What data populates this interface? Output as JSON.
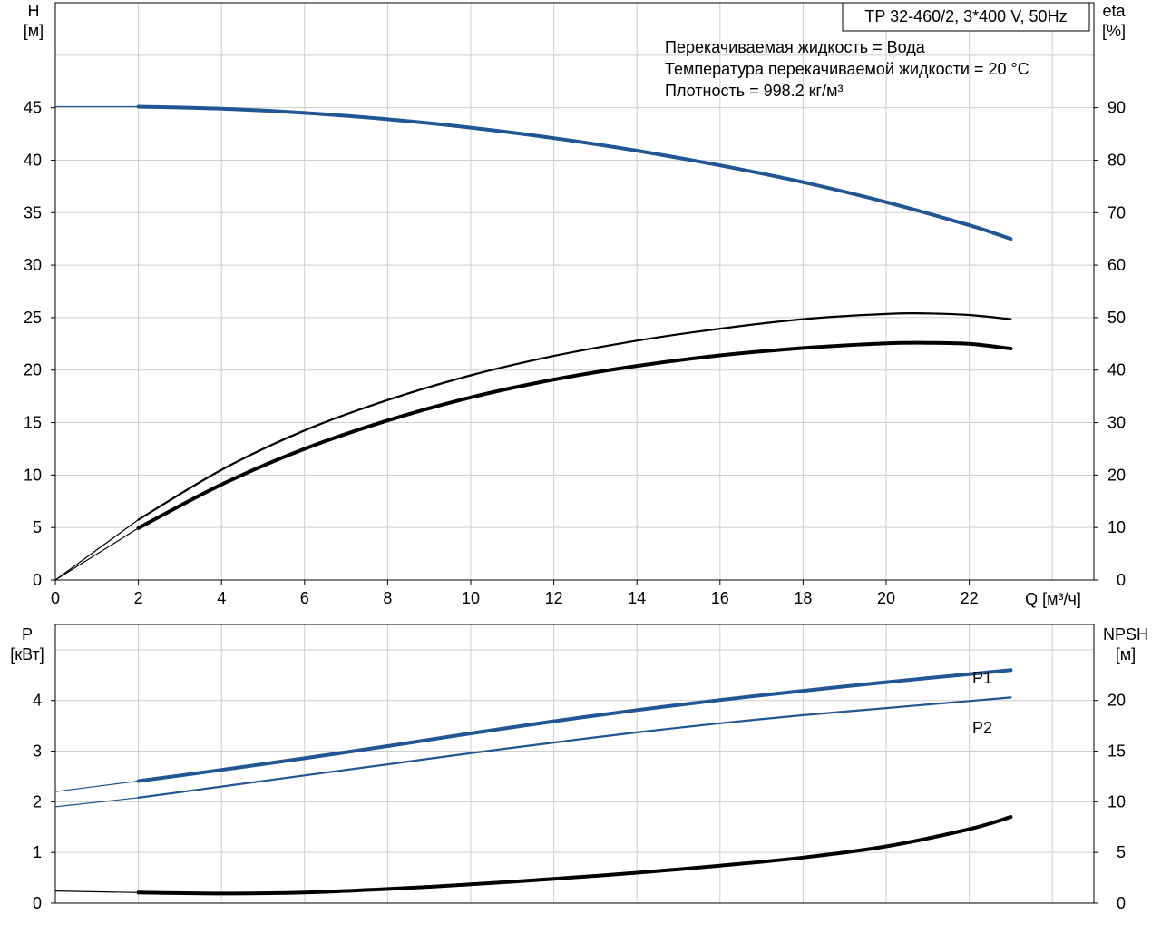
{
  "colors": {
    "background": "#ffffff",
    "grid": "#cfcfcf",
    "axis": "#000000",
    "blue": "#1f5693",
    "black": "#000000",
    "text": "#000000"
  },
  "header": {
    "title": "TP 32-460/2, 3*400 V, 50Hz",
    "info_lines": [
      "Перекачиваемая жидкость = Вода",
      "Температура перекачиваемой жидкости = 20 °C",
      "Плотность = 998.2 кг/м³"
    ]
  },
  "chart_data": [
    {
      "type": "line",
      "x_label": "Q [м³/ч]",
      "x_ticks": [
        "0",
        "2",
        "4",
        "6",
        "8",
        "10",
        "12",
        "14",
        "16",
        "18",
        "20",
        "22"
      ],
      "xlim": [
        0,
        25
      ],
      "y_left": {
        "label": "H",
        "unit": "[м]",
        "ylim": [
          0,
          55
        ],
        "ticks": [
          "0",
          "5",
          "10",
          "15",
          "20",
          "25",
          "30",
          "35",
          "40",
          "45"
        ]
      },
      "y_right": {
        "label": "eta",
        "unit": "[%]",
        "ylim": [
          0,
          110
        ],
        "ticks": [
          "0",
          "10",
          "20",
          "30",
          "40",
          "50",
          "60",
          "70",
          "80",
          "90"
        ]
      },
      "grid": true,
      "series": [
        {
          "axis": "left",
          "color": "blue",
          "thin_x": [
            0,
            2
          ],
          "thin_y": [
            45.1,
            45.1
          ],
          "x": [
            2,
            4,
            6,
            8,
            10,
            12,
            14,
            16,
            18,
            20,
            22,
            23
          ],
          "y": [
            45.1,
            44.9,
            44.5,
            43.9,
            43.1,
            42.1,
            40.9,
            39.5,
            37.9,
            36.0,
            33.8,
            32.5
          ]
        },
        {
          "axis": "right",
          "color": "black",
          "thin_x": [
            0,
            2
          ],
          "thin_y": [
            0,
            11.5
          ],
          "x": [
            2,
            4,
            6,
            8,
            10,
            12,
            14,
            16,
            18,
            20,
            21,
            22,
            23
          ],
          "y": [
            11.5,
            21.0,
            28.5,
            34.3,
            39.0,
            42.7,
            45.6,
            47.9,
            49.7,
            50.7,
            50.8,
            50.5,
            49.7
          ]
        },
        {
          "axis": "right",
          "color": "black",
          "thin_x": [
            0,
            2
          ],
          "thin_y": [
            0,
            9.9
          ],
          "x": [
            2,
            4,
            6,
            8,
            10,
            12,
            14,
            16,
            18,
            20,
            21,
            22,
            23
          ],
          "y": [
            9.9,
            18.2,
            25.0,
            30.4,
            34.8,
            38.2,
            40.8,
            42.8,
            44.2,
            45.1,
            45.2,
            45.0,
            44.1
          ]
        }
      ]
    },
    {
      "type": "line",
      "x_label": "",
      "xlim": [
        0,
        25
      ],
      "y_left": {
        "label": "P",
        "unit": "[кВт]",
        "ylim": [
          0,
          5.5
        ],
        "ticks": [
          "0",
          "1",
          "2",
          "3",
          "4"
        ]
      },
      "y_right": {
        "label": "NPSH",
        "unit": "[м]",
        "ylim": [
          0,
          27.5
        ],
        "ticks": [
          "0",
          "5",
          "10",
          "15",
          "20"
        ]
      },
      "grid": true,
      "series": [
        {
          "name": "P1",
          "axis": "left",
          "color": "blue",
          "thin_x": [
            0,
            2
          ],
          "thin_y": [
            2.2,
            2.41
          ],
          "x": [
            2,
            4,
            6,
            8,
            10,
            12,
            14,
            16,
            18,
            20,
            22,
            23
          ],
          "y": [
            2.41,
            2.63,
            2.86,
            3.1,
            3.35,
            3.59,
            3.81,
            4.01,
            4.19,
            4.36,
            4.52,
            4.6
          ]
        },
        {
          "name": "P2",
          "axis": "left",
          "color": "blue",
          "thin_x": [
            0,
            2
          ],
          "thin_y": [
            1.9,
            2.08
          ],
          "x": [
            2,
            4,
            6,
            8,
            10,
            12,
            14,
            16,
            18,
            20,
            22,
            23
          ],
          "y": [
            2.08,
            2.3,
            2.52,
            2.74,
            2.96,
            3.17,
            3.37,
            3.55,
            3.71,
            3.85,
            3.99,
            4.06
          ]
        },
        {
          "axis": "right",
          "color": "black",
          "thin_x": [
            0,
            2
          ],
          "thin_y": [
            1.2,
            1.05
          ],
          "x": [
            2,
            4,
            6,
            8,
            10,
            12,
            14,
            16,
            18,
            20,
            22,
            23
          ],
          "y": [
            1.05,
            0.95,
            1.05,
            1.4,
            1.85,
            2.4,
            3.0,
            3.7,
            4.5,
            5.6,
            7.3,
            8.5
          ]
        }
      ]
    }
  ]
}
